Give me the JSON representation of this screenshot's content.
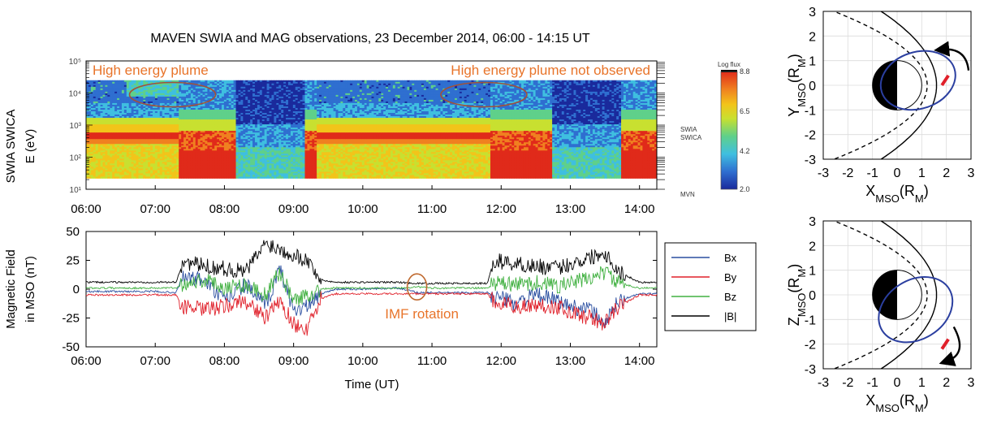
{
  "figure_title": "MAVEN SWIA and MAG observations, 23 December 2014, 06:00 - 14:15 UT",
  "chart_data": [
    {
      "type": "heatmap",
      "name": "swia-spectrogram",
      "ylabel_line1": "SWIA SWICA",
      "ylabel_line2": "E (eV)",
      "yscale": "log",
      "ylim": [
        10,
        100000
      ],
      "ytick_labels": [
        "10⁵",
        "10⁴",
        "10³",
        "10²",
        "10¹"
      ],
      "ytick_values": [
        100000,
        10000,
        1000,
        100,
        10
      ],
      "xlim": [
        "06:00",
        "14:15"
      ],
      "xtick_labels": [
        "06:00",
        "07:00",
        "08:00",
        "09:00",
        "10:00",
        "11:00",
        "12:00",
        "13:00",
        "14:00"
      ],
      "colorbar": {
        "label": "Log flux",
        "ticks": [
          "8.8",
          "6.5",
          "4.2",
          "2.0"
        ],
        "range": [
          2.0,
          8.8
        ]
      },
      "right_labels": [
        "SWIA",
        "SWICA",
        "MVN"
      ],
      "annotations": [
        {
          "text": "High energy plume",
          "color": "#e8742a",
          "time": "07:15",
          "energy": 10000
        },
        {
          "text": "High energy plume not observed",
          "color": "#e8742a",
          "time": "11:45",
          "energy": 10000
        }
      ],
      "colors": [
        "#1a2a9c",
        "#2f6fd0",
        "#3fbfe0",
        "#5fd08a",
        "#c8e030",
        "#f2c41a",
        "#f08020",
        "#e02a1a"
      ]
    },
    {
      "type": "line",
      "name": "magnetic-field",
      "ylabel_line1": "Magnetic Field",
      "ylabel_line2": "in MSO (nT)",
      "xlabel": "Time (UT)",
      "ylim": [
        -50,
        50
      ],
      "ytick_labels": [
        "50",
        "25",
        "0",
        "-25",
        "-50"
      ],
      "ytick_values": [
        50,
        25,
        0,
        -25,
        -50
      ],
      "xlim": [
        "06:00",
        "14:15"
      ],
      "xtick_labels": [
        "06:00",
        "07:00",
        "08:00",
        "09:00",
        "10:00",
        "11:00",
        "12:00",
        "13:00",
        "14:00"
      ],
      "annotation": {
        "text": "IMF rotation",
        "color": "#e8742a",
        "time": "10:47"
      },
      "series": [
        {
          "name": "Bx",
          "color": "#2a4ea0",
          "t": [
            6.0,
            7.0,
            7.3,
            7.4,
            7.7,
            8.0,
            8.3,
            8.6,
            8.8,
            9.0,
            9.2,
            9.4,
            9.6,
            10.0,
            10.5,
            10.8,
            11.0,
            11.8,
            11.9,
            12.2,
            12.5,
            12.8,
            13.0,
            13.3,
            13.5,
            13.7,
            14.0,
            14.25
          ],
          "v": [
            -2,
            -2,
            -3,
            10,
            8,
            -10,
            4,
            -15,
            18,
            -18,
            -15,
            -4,
            0,
            0,
            1,
            -3,
            -3,
            -3,
            -6,
            -12,
            -5,
            -10,
            -15,
            -18,
            -30,
            -10,
            -4,
            -4
          ]
        },
        {
          "name": "By",
          "color": "#e0202a",
          "t": [
            6.0,
            7.0,
            7.3,
            7.4,
            7.7,
            8.0,
            8.3,
            8.6,
            8.8,
            9.0,
            9.2,
            9.4,
            9.6,
            10.0,
            10.5,
            10.8,
            11.0,
            11.8,
            11.9,
            12.2,
            12.5,
            12.8,
            13.0,
            13.3,
            13.5,
            13.7,
            14.0,
            14.25
          ],
          "v": [
            -5,
            -5,
            -5,
            -15,
            -18,
            -15,
            -10,
            -25,
            -10,
            -30,
            -35,
            -8,
            -4,
            -4,
            -4,
            -4,
            -4,
            -4,
            -12,
            -15,
            -14,
            -15,
            -20,
            -25,
            -30,
            -15,
            -5,
            -5
          ]
        },
        {
          "name": "Bz",
          "color": "#40b040",
          "t": [
            6.0,
            7.0,
            7.3,
            7.4,
            7.7,
            8.0,
            8.3,
            8.6,
            8.8,
            9.0,
            9.2,
            9.4,
            9.6,
            10.0,
            10.5,
            10.8,
            11.0,
            11.8,
            11.9,
            12.2,
            12.5,
            12.8,
            13.0,
            13.3,
            13.5,
            13.7,
            14.0,
            14.25
          ],
          "v": [
            1,
            1,
            1,
            5,
            8,
            2,
            4,
            -5,
            15,
            -10,
            -5,
            0,
            1,
            1,
            1,
            2,
            1,
            1,
            5,
            4,
            6,
            3,
            5,
            10,
            15,
            5,
            1,
            1
          ]
        },
        {
          "name": "|B|",
          "color": "#000000",
          "t": [
            6.0,
            7.0,
            7.3,
            7.4,
            7.7,
            8.0,
            8.3,
            8.6,
            8.8,
            9.0,
            9.2,
            9.4,
            9.6,
            10.0,
            10.5,
            10.8,
            11.0,
            11.8,
            11.9,
            12.2,
            12.5,
            12.8,
            13.0,
            13.3,
            13.5,
            13.7,
            14.0,
            14.25
          ],
          "v": [
            6,
            6,
            6,
            24,
            20,
            18,
            15,
            40,
            35,
            30,
            25,
            8,
            6,
            6,
            6,
            5,
            5,
            5,
            25,
            22,
            20,
            18,
            22,
            28,
            32,
            15,
            6,
            6
          ]
        }
      ]
    },
    {
      "type": "line",
      "name": "orbit-xy",
      "xlabel": "X",
      "xlabel_sub": "MSO",
      "xlabel_paren": "(R",
      "xlabel_paren_sub": "M",
      "xlabel_close": ")",
      "ylabel": "Y",
      "ylabel_sub": "MSO",
      "ylabel_paren": "(R",
      "ylabel_paren_sub": "M",
      "ylabel_close": ")",
      "xlim": [
        -3,
        3
      ],
      "ylim": [
        -3,
        3
      ],
      "tick_labels": [
        "-3",
        "-2",
        "-1",
        "0",
        "1",
        "2",
        "3"
      ],
      "grid": true,
      "orbit": {
        "color": "#2b3fa0",
        "cx": 0.85,
        "cy": 0.2,
        "rx": 1.55,
        "ry": 1.15,
        "tilt_deg": 18
      },
      "spacecraft": {
        "x": 1.95,
        "y": 0.2,
        "color": "#e0202a"
      },
      "arrow_direction": "counter-clockwise"
    },
    {
      "type": "line",
      "name": "orbit-xz",
      "xlabel": "X",
      "xlabel_sub": "MSO",
      "xlabel_paren": "(R",
      "xlabel_paren_sub": "M",
      "xlabel_close": ")",
      "ylabel": "Z",
      "ylabel_sub": "MSO",
      "ylabel_paren": "(R",
      "ylabel_paren_sub": "M",
      "ylabel_close": ")",
      "xlim": [
        -3,
        3
      ],
      "ylim": [
        -3,
        3
      ],
      "tick_labels": [
        "-3",
        "-2",
        "-1",
        "0",
        "1",
        "2",
        "3"
      ],
      "grid": true,
      "orbit": {
        "color": "#2b3fa0",
        "cx": 0.75,
        "cy": -0.6,
        "rx": 1.6,
        "ry": 1.2,
        "tilt_deg": 32
      },
      "spacecraft": {
        "x": 1.95,
        "y": -2.0,
        "color": "#e0202a"
      },
      "arrow_direction": "clockwise"
    }
  ],
  "legend": {
    "entries": [
      {
        "label": "Bx",
        "color": "#2a4ea0"
      },
      {
        "label": "By",
        "color": "#e0202a"
      },
      {
        "label": "Bz",
        "color": "#40b040"
      },
      {
        "label": "|B|",
        "color": "#000000"
      }
    ]
  }
}
